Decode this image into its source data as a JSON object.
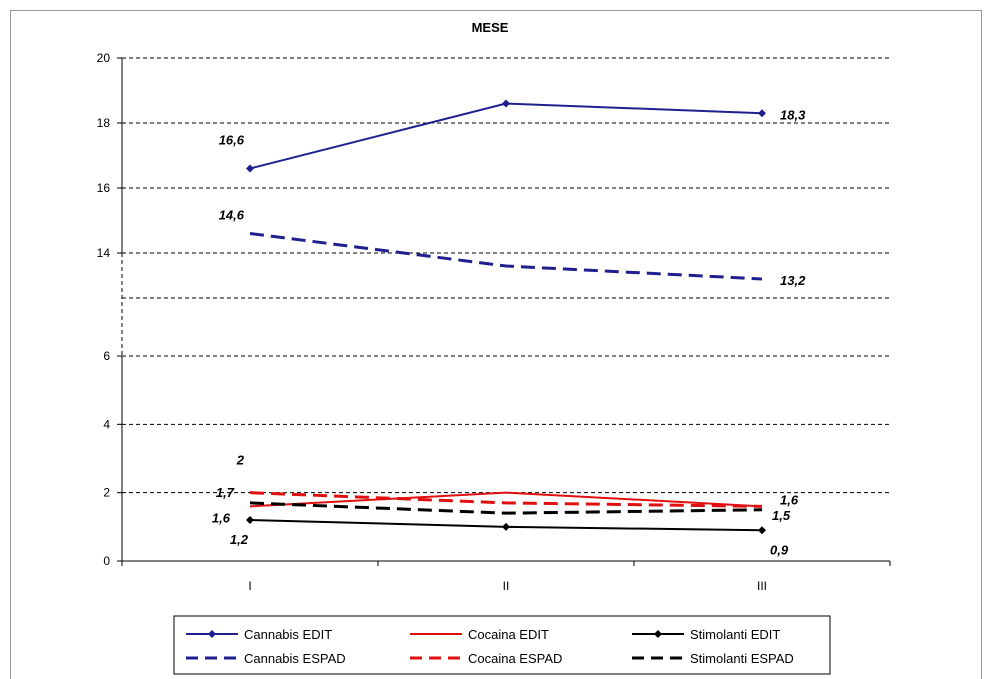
{
  "chart_data": {
    "type": "line",
    "title": "MESE",
    "categories": [
      "I",
      "II",
      "III"
    ],
    "y_ticks": [
      "0",
      "2",
      "4",
      "6",
      "14",
      "16",
      "18",
      "20"
    ],
    "ylim": [
      0,
      20
    ],
    "y_axis_break": [
      6,
      14
    ],
    "grid": true,
    "legend_position": "bottom",
    "series": [
      {
        "name": "Cannabis EDIT",
        "values": [
          16.6,
          18.6,
          18.3
        ],
        "color": "#1f1f8f",
        "style": "solid-diamond",
        "labels": [
          "16,6",
          "",
          "18,3"
        ]
      },
      {
        "name": "Cannabis ESPAD",
        "values": [
          14.6,
          13.6,
          13.2
        ],
        "color": "#1f1f8f",
        "style": "dashed",
        "labels": [
          "14,6",
          "",
          "13,2"
        ]
      },
      {
        "name": "Cocaina EDIT",
        "values": [
          1.6,
          2.0,
          1.6
        ],
        "color": "#e01010",
        "style": "solid",
        "labels": [
          "",
          "",
          ""
        ]
      },
      {
        "name": "Cocaina ESPAD",
        "values": [
          2.0,
          1.7,
          1.6
        ],
        "color": "#e01010",
        "style": "dashed",
        "labels": [
          "2",
          "",
          "1,6"
        ]
      },
      {
        "name": "Stimolanti EDIT",
        "values": [
          1.2,
          1.0,
          0.9
        ],
        "color": "#000000",
        "style": "solid-diamond",
        "labels": [
          "1,2",
          "",
          "0,9"
        ]
      },
      {
        "name": "Stimolanti ESPAD",
        "values": [
          1.7,
          1.4,
          1.5
        ],
        "color": "#000000",
        "style": "dashed",
        "labels": [
          "1,7",
          "",
          "1,5"
        ]
      }
    ],
    "extra_labels": [
      {
        "series": 2,
        "point": 0,
        "text": "1,6"
      }
    ]
  }
}
